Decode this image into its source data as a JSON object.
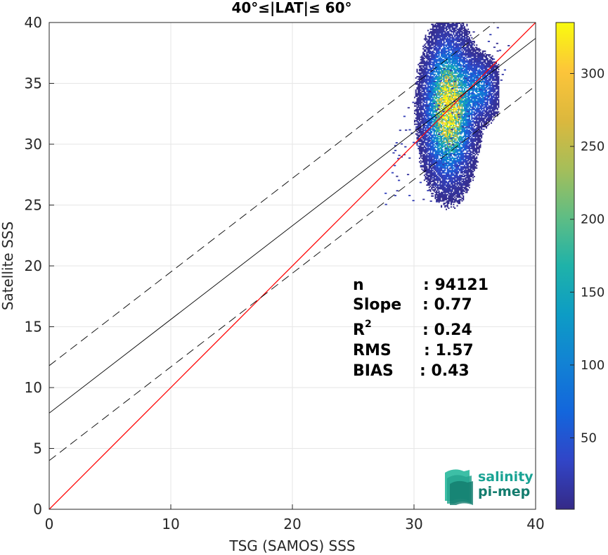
{
  "chart_data": {
    "type": "heatmap",
    "title": "40°≤|LAT|≤ 60°",
    "xlabel": "TSG (SAMOS) SSS",
    "ylabel": "Satellite SSS",
    "xlim": [
      0,
      40
    ],
    "ylim": [
      0,
      40
    ],
    "xticks": [
      "0",
      "10",
      "20",
      "30",
      "40"
    ],
    "yticks": [
      "0",
      "5",
      "10",
      "15",
      "20",
      "25",
      "30",
      "35",
      "40"
    ],
    "grid": true,
    "colorbar": {
      "range": [
        1,
        335
      ],
      "ticks": [
        "50",
        "100",
        "150",
        "200",
        "250",
        "300"
      ],
      "colormap": "parula"
    },
    "lines": [
      {
        "kind": "identity",
        "style": "solid",
        "color": "#ff0000",
        "x": [
          0,
          40
        ],
        "y": [
          0,
          40
        ]
      },
      {
        "kind": "regression",
        "style": "solid",
        "color": "#000000",
        "intercept": 7.9,
        "slope": 0.77
      },
      {
        "kind": "regression-upper",
        "style": "dashed",
        "color": "#000000",
        "intercept": 11.8,
        "slope": 0.77
      },
      {
        "kind": "regression-lower",
        "style": "dashed",
        "color": "#000000",
        "intercept": 4.0,
        "slope": 0.77
      }
    ],
    "density_cluster": {
      "main": {
        "x_center": 32.8,
        "y_center": 32.8,
        "x_spread": 0.9,
        "y_spread": 2.6,
        "peak": 335
      },
      "secondary": {
        "x_center": 35.2,
        "y_center": 34.5,
        "x_spread": 0.8,
        "y_spread": 1.2,
        "peak": 90
      },
      "x_range": [
        28.5,
        37
      ],
      "y_range": [
        23.8,
        40
      ]
    },
    "stats": [
      {
        "label": "n",
        "value": ": 94121"
      },
      {
        "label": "Slope",
        "value": ": 0.77"
      },
      {
        "label": "R",
        "sup": "2",
        "value": ": 0.24"
      },
      {
        "label": "RMS",
        "value": ": 1.57"
      },
      {
        "label": "BIAS",
        "value": ": 0.43"
      }
    ]
  },
  "logo": {
    "line1": "salinity",
    "line2": "pi-mep"
  },
  "colors": {
    "identity_line": "#ff0000",
    "fit_line": "#000000",
    "logo_teal": "#1aa394"
  }
}
